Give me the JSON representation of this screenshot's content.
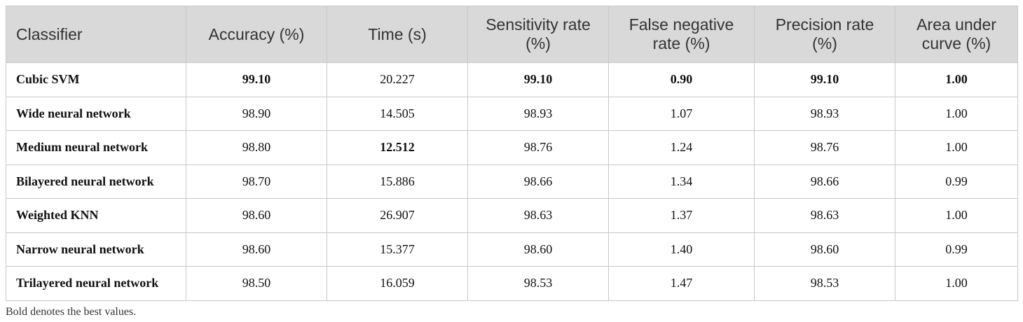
{
  "table": {
    "header": [
      "Classifier",
      "Accuracy (%)",
      "Time (s)",
      "Sensitivity rate (%)",
      "False negative rate (%)",
      "Precision rate (%)",
      "Area under curve (%)"
    ],
    "rows": [
      [
        "Cubic SVM",
        "99.10",
        "20.227",
        "99.10",
        "0.90",
        "99.10",
        "1.00"
      ],
      [
        "Wide neural network",
        "98.90",
        "14.505",
        "98.93",
        "1.07",
        "98.93",
        "1.00"
      ],
      [
        "Medium neural network",
        "98.80",
        "12.512",
        "98.76",
        "1.24",
        "98.76",
        "1.00"
      ],
      [
        "Bilayered neural network",
        "98.70",
        "15.886",
        "98.66",
        "1.34",
        "98.66",
        "0.99"
      ],
      [
        "Weighted KNN",
        "98.60",
        "26.907",
        "98.63",
        "1.37",
        "98.63",
        "1.00"
      ],
      [
        "Narrow neural network",
        "98.60",
        "15.377",
        "98.60",
        "1.40",
        "98.60",
        "0.99"
      ],
      [
        "Trilayered neural network",
        "98.50",
        "16.059",
        "98.53",
        "1.47",
        "98.53",
        "1.00"
      ]
    ],
    "bold": [
      [
        0,
        1
      ],
      [
        0,
        3
      ],
      [
        0,
        4
      ],
      [
        0,
        5
      ],
      [
        0,
        6
      ],
      [
        2,
        2
      ]
    ]
  },
  "footnote": "Bold denotes the best values."
}
